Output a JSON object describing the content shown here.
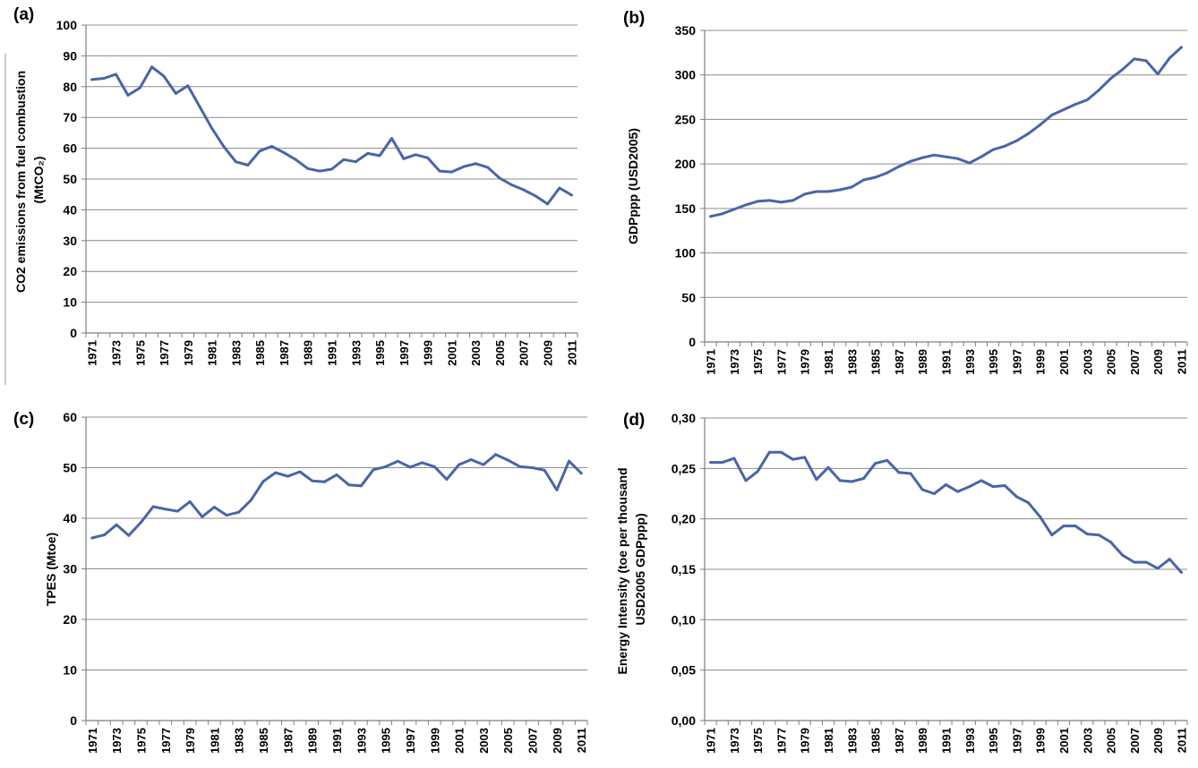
{
  "colors": {
    "series": "#4a64a8",
    "grid": "#8c8c8c",
    "axis": "#7f7f7f"
  },
  "chart_data": [
    {
      "panel": "(a)",
      "type": "line",
      "ylabel_lines": [
        "CO2 emissions from fuel combustion",
        "(MtCO₂)"
      ],
      "ylim": [
        0,
        100
      ],
      "yticks": [
        "0",
        "10",
        "20",
        "30",
        "40",
        "50",
        "60",
        "70",
        "80",
        "90",
        "100"
      ],
      "x": [
        1971,
        1972,
        1973,
        1974,
        1975,
        1976,
        1977,
        1978,
        1979,
        1980,
        1981,
        1982,
        1983,
        1984,
        1985,
        1986,
        1987,
        1988,
        1989,
        1990,
        1991,
        1992,
        1993,
        1994,
        1995,
        1996,
        1997,
        1998,
        1999,
        2000,
        2001,
        2002,
        2003,
        2004,
        2005,
        2006,
        2007,
        2008,
        2009,
        2010,
        2011
      ],
      "xticks": [
        "1971",
        "1973",
        "1975",
        "1977",
        "1979",
        "1981",
        "1983",
        "1985",
        "1987",
        "1989",
        "1991",
        "1993",
        "1995",
        "1997",
        "1999",
        "2001",
        "2003",
        "2005",
        "2007",
        "2009",
        "2011"
      ],
      "values": [
        82.3,
        82.7,
        84.0,
        77.2,
        79.6,
        86.4,
        83.4,
        77.8,
        80.3,
        73.4,
        66.5,
        60.5,
        55.6,
        54.5,
        59.1,
        60.6,
        58.6,
        56.3,
        53.4,
        52.6,
        53.2,
        56.3,
        55.6,
        58.3,
        57.6,
        63.2,
        56.6,
        57.9,
        56.9,
        52.6,
        52.3,
        54.0,
        55.0,
        53.8,
        50.3,
        48.1,
        46.5,
        44.5,
        41.9,
        47.1,
        44.8
      ],
      "grid": true
    },
    {
      "panel": "(b)",
      "type": "line",
      "ylabel_lines": [
        "GDPppp (USD2005)"
      ],
      "ylim": [
        0,
        350
      ],
      "yticks": [
        "0",
        "50",
        "100",
        "150",
        "200",
        "250",
        "300",
        "350"
      ],
      "x": [
        1971,
        1972,
        1973,
        1974,
        1975,
        1976,
        1977,
        1978,
        1979,
        1980,
        1981,
        1982,
        1983,
        1984,
        1985,
        1986,
        1987,
        1988,
        1989,
        1990,
        1991,
        1992,
        1993,
        1994,
        1995,
        1996,
        1997,
        1998,
        1999,
        2000,
        2001,
        2002,
        2003,
        2004,
        2005,
        2006,
        2007,
        2008,
        2009,
        2010,
        2011
      ],
      "xticks": [
        "1971",
        "1973",
        "1975",
        "1977",
        "1979",
        "1981",
        "1983",
        "1985",
        "1987",
        "1989",
        "1991",
        "1993",
        "1995",
        "1997",
        "1999",
        "2001",
        "2003",
        "2005",
        "2007",
        "2009",
        "2011"
      ],
      "values": [
        141,
        144,
        149,
        154,
        158,
        159,
        157,
        159,
        166,
        169,
        169,
        171,
        174,
        182,
        185,
        190,
        197,
        203,
        207,
        210,
        208,
        206,
        201,
        208,
        216,
        220,
        226,
        234,
        244,
        255,
        261,
        267,
        272,
        283,
        296,
        306,
        318,
        316,
        301,
        319,
        331
      ],
      "grid": true
    },
    {
      "panel": "(c)",
      "type": "line",
      "ylabel_lines": [
        "TPES (Mtoe)"
      ],
      "ylim": [
        0,
        60
      ],
      "yticks": [
        "0",
        "10",
        "20",
        "30",
        "40",
        "50",
        "60"
      ],
      "x": [
        1971,
        1972,
        1973,
        1974,
        1975,
        1976,
        1977,
        1978,
        1979,
        1980,
        1981,
        1982,
        1983,
        1984,
        1985,
        1986,
        1987,
        1988,
        1989,
        1990,
        1991,
        1992,
        1993,
        1994,
        1995,
        1996,
        1997,
        1998,
        1999,
        2000,
        2001,
        2002,
        2003,
        2004,
        2005,
        2006,
        2007,
        2008,
        2009,
        2010,
        2011
      ],
      "xticks": [
        "1971",
        "1973",
        "1975",
        "1977",
        "1979",
        "1981",
        "1983",
        "1985",
        "1987",
        "1989",
        "1991",
        "1993",
        "1995",
        "1997",
        "1999",
        "2001",
        "2003",
        "2005",
        "2007",
        "2009",
        "2011"
      ],
      "values": [
        36.1,
        36.7,
        38.7,
        36.6,
        39.2,
        42.3,
        41.8,
        41.4,
        43.3,
        40.3,
        42.2,
        40.6,
        41.2,
        43.6,
        47.3,
        49.0,
        48.3,
        49.2,
        47.4,
        47.2,
        48.6,
        46.6,
        46.4,
        49.6,
        50.2,
        51.3,
        50.1,
        51.0,
        50.2,
        47.7,
        50.6,
        51.6,
        50.6,
        52.6,
        51.5,
        50.2,
        50.0,
        49.5,
        45.6,
        51.3,
        48.9
      ],
      "grid": true
    },
    {
      "panel": "(d)",
      "type": "line",
      "ylabel_lines": [
        "Energy Intensity (toe per thousand",
        "USD2005 GDPppp)"
      ],
      "ylim": [
        0,
        0.3
      ],
      "yticks": [
        "0,00",
        "0,05",
        "0,10",
        "0,15",
        "0,20",
        "0,25",
        "0,30"
      ],
      "x": [
        1971,
        1972,
        1973,
        1974,
        1975,
        1976,
        1977,
        1978,
        1979,
        1980,
        1981,
        1982,
        1983,
        1984,
        1985,
        1986,
        1987,
        1988,
        1989,
        1990,
        1991,
        1992,
        1993,
        1994,
        1995,
        1996,
        1997,
        1998,
        1999,
        2000,
        2001,
        2002,
        2003,
        2004,
        2005,
        2006,
        2007,
        2008,
        2009,
        2010,
        2011
      ],
      "xticks": [
        "1971",
        "1973",
        "1975",
        "1977",
        "1979",
        "1981",
        "1983",
        "1985",
        "1987",
        "1989",
        "1991",
        "1993",
        "1995",
        "1997",
        "1999",
        "2001",
        "2003",
        "2005",
        "2007",
        "2009",
        "2011"
      ],
      "values": [
        0.256,
        0.256,
        0.26,
        0.238,
        0.247,
        0.266,
        0.266,
        0.259,
        0.261,
        0.239,
        0.251,
        0.238,
        0.237,
        0.24,
        0.255,
        0.258,
        0.246,
        0.245,
        0.229,
        0.225,
        0.234,
        0.227,
        0.232,
        0.238,
        0.232,
        0.233,
        0.222,
        0.216,
        0.202,
        0.184,
        0.193,
        0.193,
        0.185,
        0.184,
        0.177,
        0.164,
        0.157,
        0.157,
        0.151,
        0.16,
        0.147
      ],
      "grid": true
    }
  ]
}
